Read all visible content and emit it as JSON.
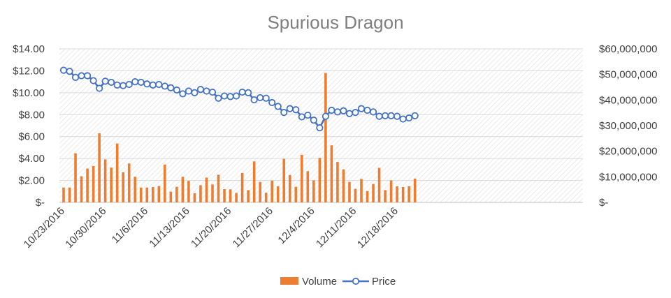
{
  "chart_data": {
    "type": "bar+line",
    "title": "Spurious Dragon",
    "x_tick_labels": [
      "10/23/2016",
      "10/30/2016",
      "11/6/2016",
      "11/13/2016",
      "11/20/2016",
      "11/27/2016",
      "12/4/2016",
      "12/11/2016",
      "12/18/2016"
    ],
    "x_start": "2016-10-23",
    "left_axis": {
      "ticks": [
        "$-",
        "$2.00",
        "$4.00",
        "$6.00",
        "$8.00",
        "$10.00",
        "$12.00",
        "$14.00"
      ],
      "range": [
        0,
        14
      ]
    },
    "right_axis": {
      "ticks": [
        "$-",
        "$10,000,000",
        "$20,000,000",
        "$30,000,000",
        "$40,000,000",
        "$50,000,000",
        "$60,000,000"
      ],
      "range": [
        0,
        60000000
      ]
    },
    "legend_position": "bottom",
    "grid": true,
    "series": [
      {
        "name": "Volume",
        "type": "bar",
        "axis": "right",
        "color": "#ed7d31",
        "values": [
          5800000,
          5800000,
          19200000,
          10200000,
          13200000,
          14200000,
          27000000,
          16800000,
          13600000,
          23000000,
          11800000,
          15200000,
          10000000,
          5800000,
          5800000,
          6000000,
          6400000,
          14800000,
          4200000,
          6100000,
          10000000,
          8400000,
          3600000,
          6700000,
          9700000,
          7000000,
          10800000,
          5200000,
          5100000,
          3700000,
          11500000,
          4800000,
          16000000,
          8000000,
          3800000,
          8500000,
          6300000,
          17000000,
          10700000,
          6100000,
          18600000,
          12200000,
          8600000,
          17400000,
          50600000,
          22300000,
          15800000,
          12900000,
          8000000,
          5300000,
          9200000,
          4400000,
          7200000,
          13500000,
          4800000,
          8600000,
          6300000,
          6000000,
          6300000,
          9300000
        ]
      },
      {
        "name": "Price",
        "type": "line",
        "axis": "left",
        "color": "#4472c4",
        "values": [
          12.05,
          11.95,
          11.4,
          11.55,
          11.55,
          11.1,
          10.4,
          11.05,
          10.95,
          10.7,
          10.65,
          10.75,
          11.0,
          10.95,
          10.8,
          10.7,
          10.75,
          10.6,
          10.45,
          10.25,
          9.9,
          10.15,
          10.0,
          10.3,
          10.15,
          10.05,
          9.5,
          9.7,
          9.65,
          9.7,
          10.05,
          10.0,
          9.35,
          9.55,
          9.5,
          9.1,
          8.75,
          8.2,
          8.55,
          8.45,
          7.8,
          7.95,
          7.5,
          6.8,
          7.85,
          8.4,
          8.25,
          8.35,
          8.1,
          8.2,
          8.55,
          8.4,
          8.25,
          7.85,
          7.9,
          7.9,
          7.85,
          7.6,
          7.7,
          7.9
        ]
      }
    ]
  }
}
